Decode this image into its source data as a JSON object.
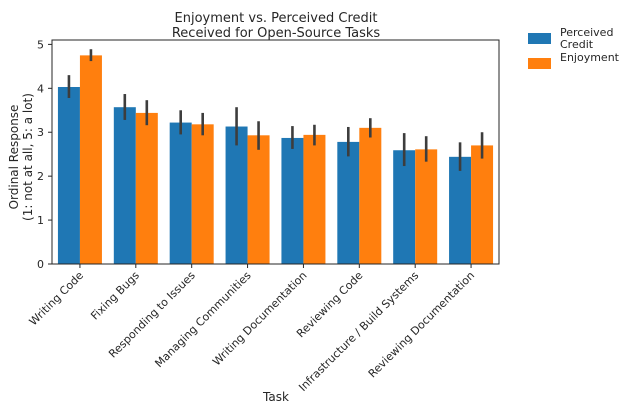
{
  "chart_data": {
    "type": "bar",
    "title": [
      "Enjoyment vs. Perceived Credit",
      "Received for Open-Source Tasks"
    ],
    "xlabel": "Task",
    "ylabel": [
      "Ordinal Response",
      "(1: not at all, 5: a lot)"
    ],
    "ylim": [
      0,
      5.1
    ],
    "yticks": [
      0,
      1,
      2,
      3,
      4,
      5
    ],
    "grid": false,
    "legend_position": "outside-top-right",
    "categories": [
      "Writing Code",
      "Fixing Bugs",
      "Responding to Issues",
      "Managing Communities",
      "Writing Documentation",
      "Reviewing Code",
      "Infrastructure / Build Systems",
      "Reviewing Documentation"
    ],
    "series": [
      {
        "name": "Perceived Credit",
        "legend_lines": [
          "Perceived",
          "Credit"
        ],
        "color": "#1f77b4",
        "values": [
          4.03,
          3.57,
          3.22,
          3.13,
          2.87,
          2.78,
          2.59,
          2.44
        ],
        "ci_low": [
          3.78,
          3.28,
          2.95,
          2.7,
          2.62,
          2.45,
          2.23,
          2.12
        ],
        "ci_high": [
          4.3,
          3.87,
          3.5,
          3.57,
          3.14,
          3.12,
          2.98,
          2.77
        ]
      },
      {
        "name": "Enjoyment",
        "legend_lines": [
          "Enjoyment"
        ],
        "color": "#ff7f0e",
        "values": [
          4.75,
          3.44,
          3.18,
          2.93,
          2.94,
          3.1,
          2.61,
          2.7
        ],
        "ci_low": [
          4.62,
          3.16,
          2.93,
          2.6,
          2.7,
          2.88,
          2.33,
          2.4
        ],
        "ci_high": [
          4.89,
          3.73,
          3.44,
          3.25,
          3.17,
          3.32,
          2.91,
          3.0
        ]
      }
    ]
  }
}
